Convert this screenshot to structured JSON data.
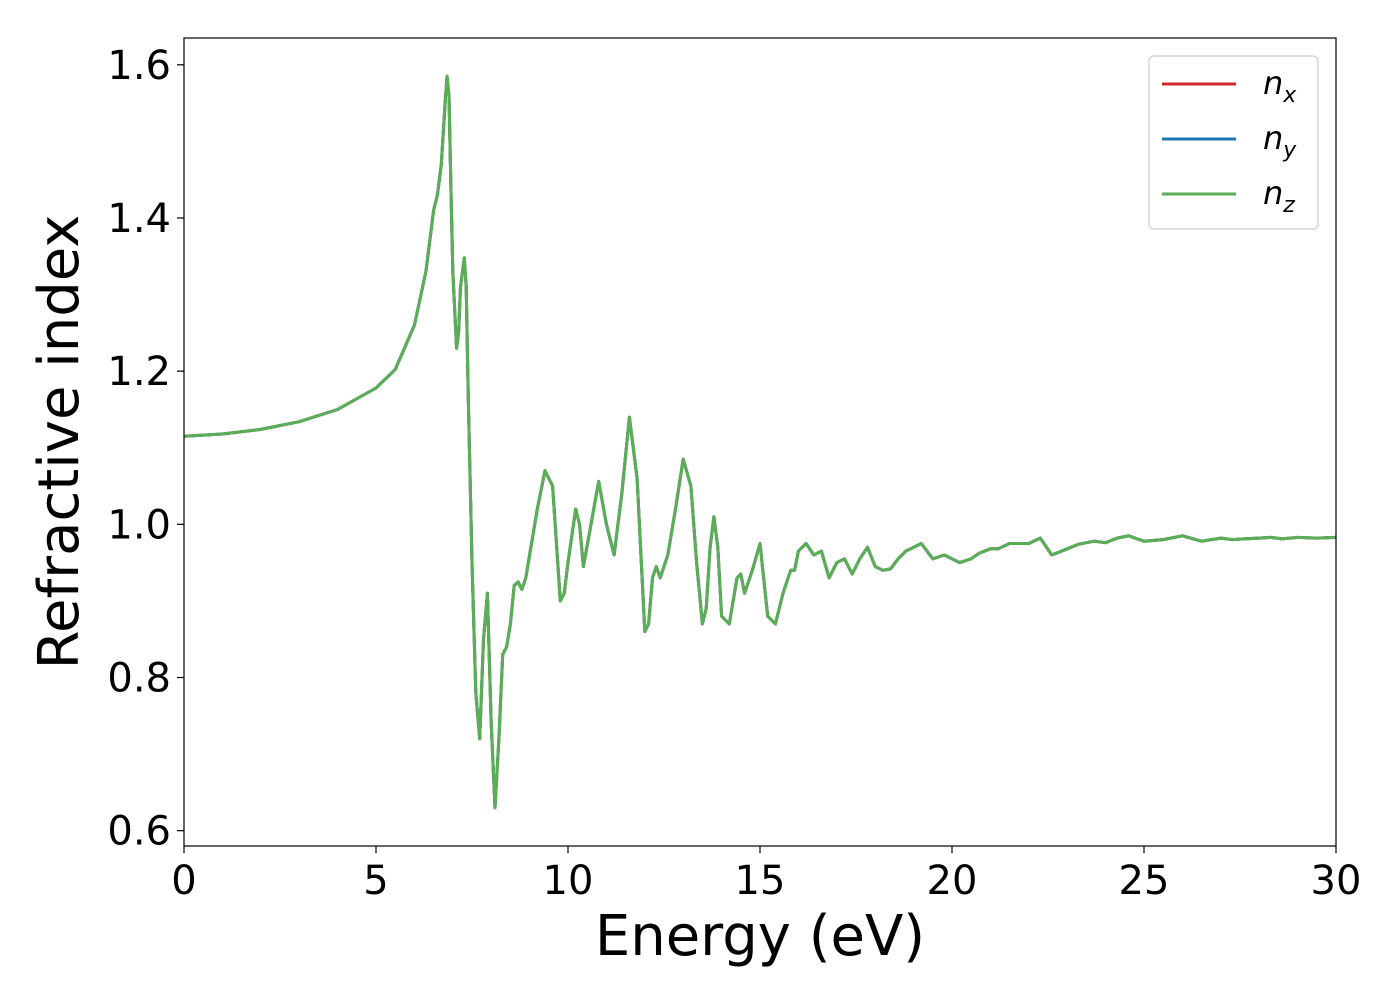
{
  "chart_data": {
    "type": "line",
    "title": "",
    "xlabel": "Energy (eV)",
    "ylabel": "Refractive index",
    "xlim": [
      0,
      30
    ],
    "ylim": [
      0.58,
      1.635
    ],
    "xticks": [
      0,
      5,
      10,
      15,
      20,
      25,
      30
    ],
    "xtick_labels": [
      "0",
      "5",
      "10",
      "15",
      "20",
      "25",
      "30"
    ],
    "yticks": [
      0.6,
      0.8,
      1.0,
      1.2,
      1.4,
      1.6
    ],
    "ytick_labels": [
      "0.6",
      "0.8",
      "1.0",
      "1.2",
      "1.4",
      "1.6"
    ],
    "grid": false,
    "legend_position": "top-right",
    "x": [
      0,
      1,
      2,
      3,
      4,
      5,
      5.5,
      6,
      6.3,
      6.5,
      6.6,
      6.7,
      6.8,
      6.85,
      6.9,
      6.95,
      7.0,
      7.1,
      7.15,
      7.2,
      7.3,
      7.35,
      7.4,
      7.5,
      7.6,
      7.7,
      7.8,
      7.9,
      8.0,
      8.1,
      8.2,
      8.3,
      8.4,
      8.5,
      8.6,
      8.7,
      8.8,
      8.9,
      9.0,
      9.2,
      9.4,
      9.6,
      9.8,
      9.9,
      10.0,
      10.2,
      10.3,
      10.4,
      10.6,
      10.8,
      11.0,
      11.2,
      11.4,
      11.6,
      11.8,
      12.0,
      12.1,
      12.2,
      12.3,
      12.4,
      12.6,
      12.8,
      13.0,
      13.2,
      13.35,
      13.5,
      13.6,
      13.7,
      13.8,
      13.9,
      14.0,
      14.2,
      14.4,
      14.5,
      14.6,
      14.8,
      15.0,
      15.2,
      15.4,
      15.6,
      15.8,
      15.9,
      16.0,
      16.2,
      16.4,
      16.6,
      16.8,
      17.0,
      17.2,
      17.4,
      17.6,
      17.8,
      18.0,
      18.2,
      18.4,
      18.6,
      18.8,
      19.0,
      19.2,
      19.5,
      19.8,
      20.0,
      20.2,
      20.5,
      20.7,
      21.0,
      21.2,
      21.5,
      22.0,
      22.3,
      22.6,
      23.0,
      23.3,
      23.7,
      24.0,
      24.3,
      24.6,
      25.0,
      25.5,
      26.0,
      26.5,
      27.0,
      27.3,
      27.6,
      28.0,
      28.3,
      28.6,
      29.0,
      29.5,
      30.0
    ],
    "series": [
      {
        "name": "n_x",
        "color": "#d62728",
        "values": [
          1.115,
          1.118,
          1.124,
          1.134,
          1.15,
          1.178,
          1.202,
          1.26,
          1.33,
          1.41,
          1.43,
          1.47,
          1.55,
          1.585,
          1.56,
          1.44,
          1.33,
          1.23,
          1.25,
          1.31,
          1.348,
          1.31,
          1.17,
          0.95,
          0.78,
          0.72,
          0.85,
          0.91,
          0.74,
          0.63,
          0.72,
          0.83,
          0.84,
          0.87,
          0.92,
          0.925,
          0.915,
          0.93,
          0.96,
          1.02,
          1.07,
          1.05,
          0.9,
          0.91,
          0.95,
          1.02,
          1.0,
          0.945,
          1.0,
          1.056,
          1.0,
          0.96,
          1.04,
          1.14,
          1.06,
          0.86,
          0.87,
          0.93,
          0.945,
          0.93,
          0.96,
          1.02,
          1.085,
          1.05,
          0.95,
          0.87,
          0.89,
          0.97,
          1.01,
          0.97,
          0.88,
          0.87,
          0.93,
          0.935,
          0.91,
          0.94,
          0.975,
          0.88,
          0.87,
          0.91,
          0.94,
          0.94,
          0.965,
          0.975,
          0.96,
          0.965,
          0.93,
          0.95,
          0.955,
          0.935,
          0.955,
          0.97,
          0.945,
          0.94,
          0.942,
          0.955,
          0.965,
          0.97,
          0.975,
          0.955,
          0.96,
          0.955,
          0.95,
          0.955,
          0.962,
          0.968,
          0.968,
          0.975,
          0.975,
          0.982,
          0.96,
          0.968,
          0.974,
          0.978,
          0.976,
          0.982,
          0.985,
          0.978,
          0.98,
          0.985,
          0.978,
          0.982,
          0.98,
          0.981,
          0.982,
          0.983,
          0.981,
          0.983,
          0.982,
          0.983
        ]
      },
      {
        "name": "n_y",
        "color": "#1f77b4",
        "values": [
          1.115,
          1.118,
          1.124,
          1.134,
          1.15,
          1.178,
          1.202,
          1.26,
          1.33,
          1.41,
          1.43,
          1.47,
          1.55,
          1.585,
          1.56,
          1.44,
          1.33,
          1.23,
          1.25,
          1.31,
          1.348,
          1.31,
          1.17,
          0.95,
          0.78,
          0.72,
          0.85,
          0.91,
          0.74,
          0.63,
          0.72,
          0.83,
          0.84,
          0.87,
          0.92,
          0.925,
          0.915,
          0.93,
          0.96,
          1.02,
          1.07,
          1.05,
          0.9,
          0.91,
          0.95,
          1.02,
          1.0,
          0.945,
          1.0,
          1.056,
          1.0,
          0.96,
          1.04,
          1.14,
          1.06,
          0.86,
          0.87,
          0.93,
          0.945,
          0.93,
          0.96,
          1.02,
          1.085,
          1.05,
          0.95,
          0.87,
          0.89,
          0.97,
          1.01,
          0.97,
          0.88,
          0.87,
          0.93,
          0.935,
          0.91,
          0.94,
          0.975,
          0.88,
          0.87,
          0.91,
          0.94,
          0.94,
          0.965,
          0.975,
          0.96,
          0.965,
          0.93,
          0.95,
          0.955,
          0.935,
          0.955,
          0.97,
          0.945,
          0.94,
          0.942,
          0.955,
          0.965,
          0.97,
          0.975,
          0.955,
          0.96,
          0.955,
          0.95,
          0.955,
          0.962,
          0.968,
          0.968,
          0.975,
          0.975,
          0.982,
          0.96,
          0.968,
          0.974,
          0.978,
          0.976,
          0.982,
          0.985,
          0.978,
          0.98,
          0.985,
          0.978,
          0.982,
          0.98,
          0.981,
          0.982,
          0.983,
          0.981,
          0.983,
          0.982,
          0.983
        ]
      },
      {
        "name": "n_z",
        "color": "#5aae55",
        "values": [
          1.115,
          1.118,
          1.124,
          1.134,
          1.15,
          1.178,
          1.202,
          1.26,
          1.33,
          1.41,
          1.43,
          1.47,
          1.55,
          1.585,
          1.56,
          1.44,
          1.33,
          1.23,
          1.25,
          1.31,
          1.348,
          1.31,
          1.17,
          0.95,
          0.78,
          0.72,
          0.85,
          0.91,
          0.74,
          0.63,
          0.72,
          0.83,
          0.84,
          0.87,
          0.92,
          0.925,
          0.915,
          0.93,
          0.96,
          1.02,
          1.07,
          1.05,
          0.9,
          0.91,
          0.95,
          1.02,
          1.0,
          0.945,
          1.0,
          1.056,
          1.0,
          0.96,
          1.04,
          1.14,
          1.06,
          0.86,
          0.87,
          0.93,
          0.945,
          0.93,
          0.96,
          1.02,
          1.085,
          1.05,
          0.95,
          0.87,
          0.89,
          0.97,
          1.01,
          0.97,
          0.88,
          0.87,
          0.93,
          0.935,
          0.91,
          0.94,
          0.975,
          0.88,
          0.87,
          0.91,
          0.94,
          0.94,
          0.965,
          0.975,
          0.96,
          0.965,
          0.93,
          0.95,
          0.955,
          0.935,
          0.955,
          0.97,
          0.945,
          0.94,
          0.942,
          0.955,
          0.965,
          0.97,
          0.975,
          0.955,
          0.96,
          0.955,
          0.95,
          0.955,
          0.962,
          0.968,
          0.968,
          0.975,
          0.975,
          0.982,
          0.96,
          0.968,
          0.974,
          0.978,
          0.976,
          0.982,
          0.985,
          0.978,
          0.98,
          0.985,
          0.978,
          0.982,
          0.98,
          0.981,
          0.982,
          0.983,
          0.981,
          0.983,
          0.982,
          0.983
        ]
      }
    ],
    "legend": [
      {
        "base": "n",
        "sub": "x"
      },
      {
        "base": "n",
        "sub": "y"
      },
      {
        "base": "n",
        "sub": "z"
      }
    ]
  }
}
